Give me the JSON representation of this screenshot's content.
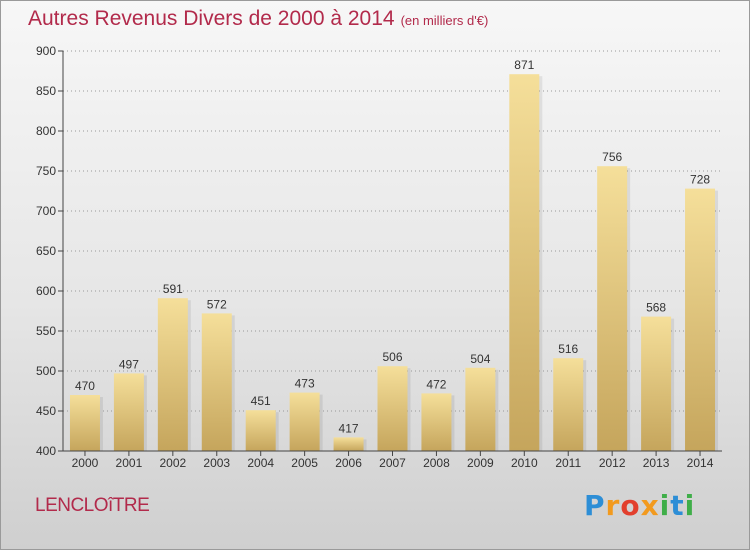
{
  "header": {
    "title": "Autres Revenus Divers de 2000 à 2014",
    "subtitle": "(en milliers d'€)"
  },
  "footer": {
    "commune": "LENCLOîTRE",
    "logo_letters": [
      "P",
      "r",
      "o",
      "x",
      "i",
      "t",
      "i"
    ],
    "logo_colors": [
      "#2d8ed6",
      "#f29a1e",
      "#e23f2d",
      "#f29a1e",
      "#3fae49",
      "#2d8ed6",
      "#3fae49"
    ]
  },
  "colors": {
    "bar_top": "#f5df9a",
    "bar_bottom": "#c5a55c",
    "axis": "#444444",
    "grid": "#999999",
    "title": "#b22a4b"
  },
  "chart_data": {
    "type": "bar",
    "title": "Autres Revenus Divers de 2000 à 2014",
    "subtitle": "(en milliers d'€)",
    "categories": [
      "2000",
      "2001",
      "2002",
      "2003",
      "2004",
      "2005",
      "2006",
      "2007",
      "2008",
      "2009",
      "2010",
      "2011",
      "2012",
      "2013",
      "2014"
    ],
    "values": [
      470,
      497,
      591,
      572,
      451,
      473,
      417,
      506,
      472,
      504,
      871,
      516,
      756,
      568,
      728
    ],
    "ylim": [
      400,
      900
    ],
    "yticks": [
      400,
      450,
      500,
      550,
      600,
      650,
      700,
      750,
      800,
      850,
      900
    ],
    "grid": true,
    "data_labels": true
  }
}
